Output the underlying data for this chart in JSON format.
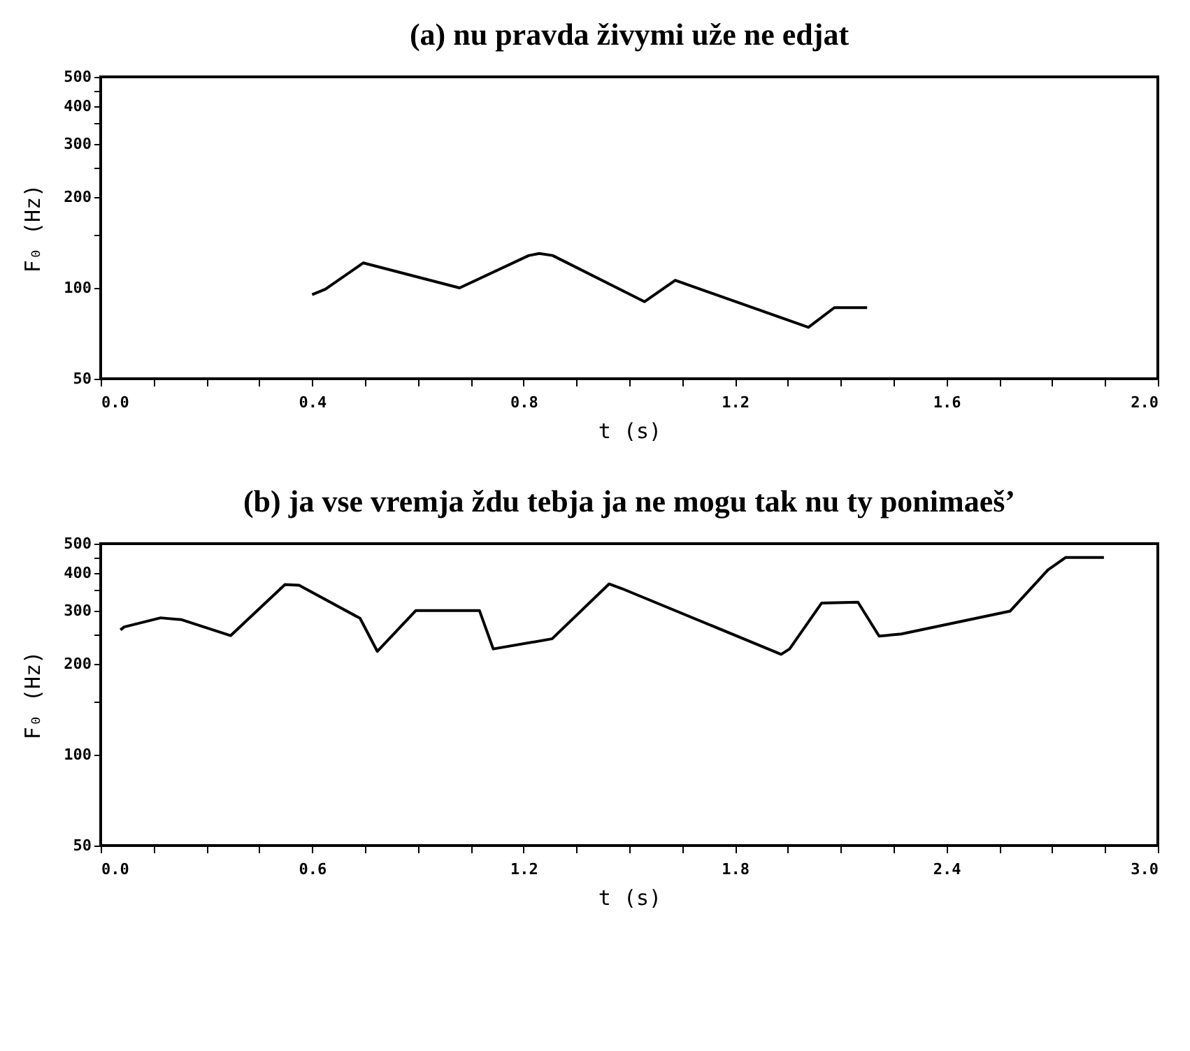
{
  "chart_data": [
    {
      "type": "line",
      "title": "(a) nu pravda živymi uže ne edjat",
      "xlabel": "t (s)",
      "ylabel": "F₀ (Hz)",
      "log": true,
      "xlim": [
        0,
        2
      ],
      "ylim": [
        50,
        500
      ],
      "xticks": [
        {
          "value": 0,
          "label": "0.0"
        },
        {
          "value": 0.1,
          "label": null
        },
        {
          "value": 0.2,
          "label": null
        },
        {
          "value": 0.3,
          "label": null
        },
        0.4,
        {
          "value": 0.5,
          "label": null
        },
        {
          "value": 0.6,
          "label": null
        },
        {
          "value": 0.7,
          "label": null
        },
        0.8,
        {
          "value": 0.9,
          "label": null
        },
        {
          "value": 1.0,
          "label": null
        },
        {
          "value": 1.1,
          "label": null
        },
        1.2,
        {
          "value": 1.3,
          "label": null
        },
        {
          "value": 1.4,
          "label": null
        },
        {
          "value": 1.5,
          "label": null
        },
        1.6,
        {
          "value": 1.7,
          "label": null
        },
        {
          "value": 1.8,
          "label": null
        },
        {
          "value": 1.9,
          "label": null
        },
        {
          "value": 2,
          "label": "2.0"
        }
      ],
      "yticks": [
        50,
        100,
        {
          "value": 150,
          "label": null
        },
        200,
        {
          "value": 250,
          "label": null
        },
        300,
        {
          "value": 350,
          "label": null
        },
        400,
        {
          "value": 450,
          "label": null
        },
        500
      ],
      "series": [
        {
          "color": "#000000",
          "x": [
            0.4,
            0.425,
            0.497,
            0.679,
            0.81,
            0.83,
            0.855,
            1.029,
            1.087,
            1.339,
            1.388,
            1.45
          ],
          "values": [
            95,
            99,
            121,
            100,
            128,
            130,
            128,
            90,
            106,
            74,
            86,
            86
          ]
        }
      ]
    },
    {
      "type": "line",
      "title": "(b) ja vse vremja ždu tebja ja ne mogu tak nu ty ponimaeš’",
      "xlabel": "t (s)",
      "ylabel": "F₀ (Hz)",
      "log": true,
      "xlim": [
        0,
        3
      ],
      "ylim": [
        50,
        500
      ],
      "xticks": [
        {
          "value": 0,
          "label": "0.0"
        },
        {
          "value": 0.15,
          "label": null
        },
        {
          "value": 0.3,
          "label": null
        },
        {
          "value": 0.45,
          "label": null
        },
        0.6,
        {
          "value": 0.75,
          "label": null
        },
        {
          "value": 0.9,
          "label": null
        },
        {
          "value": 1.05,
          "label": null
        },
        1.2,
        {
          "value": 1.35,
          "label": null
        },
        {
          "value": 1.5,
          "label": null
        },
        {
          "value": 1.65,
          "label": null
        },
        1.8,
        {
          "value": 1.95,
          "label": null
        },
        {
          "value": 2.1,
          "label": null
        },
        {
          "value": 2.25,
          "label": null
        },
        2.4,
        {
          "value": 2.55,
          "label": null
        },
        {
          "value": 2.7,
          "label": null
        },
        {
          "value": 2.85,
          "label": null
        },
        {
          "value": 3,
          "label": "3.0"
        }
      ],
      "yticks": [
        50,
        100,
        {
          "value": 150,
          "label": null
        },
        200,
        {
          "value": 250,
          "label": null
        },
        300,
        {
          "value": 350,
          "label": null
        },
        400,
        {
          "value": 450,
          "label": null
        },
        500
      ],
      "series": [
        {
          "color": "#000000",
          "x": [
            0.056,
            0.067,
            0.17,
            0.23,
            0.369,
            0.448,
            0.523,
            0.563,
            0.736,
            0.785,
            0.894,
            1.075,
            1.114,
            1.281,
            1.443,
            1.479,
            1.931,
            1.955,
            2.046,
            2.149,
            2.209,
            2.272,
            2.581,
            2.688,
            2.738,
            2.847
          ],
          "values": [
            259,
            265,
            284,
            280,
            248,
            303,
            366,
            364,
            283,
            220,
            300,
            300,
            224,
            242,
            368,
            355,
            215,
            224,
            318,
            320,
            247,
            251,
            299,
            409,
            450,
            450
          ]
        }
      ]
    }
  ]
}
